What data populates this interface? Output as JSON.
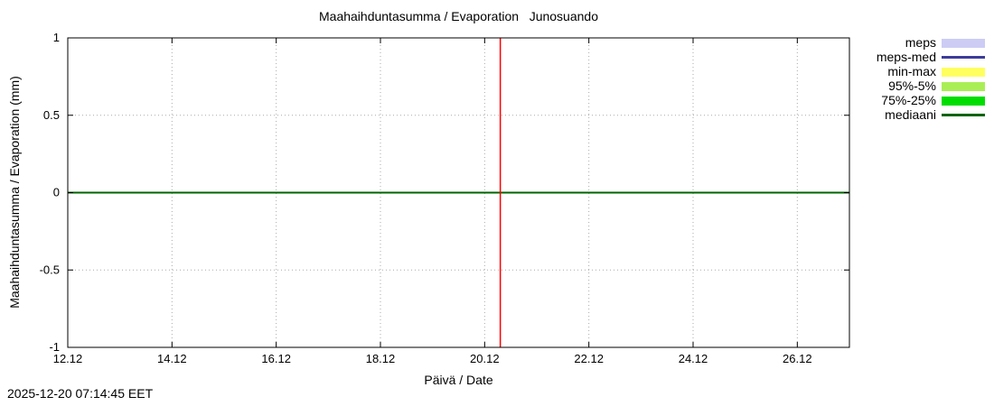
{
  "chart_data": {
    "type": "line",
    "title": "Maahaihduntasumma / Evaporation   Junosuando",
    "xlabel": "Päivä / Date",
    "ylabel": "Maahaihduntasumma / Evaporation (mm)",
    "timestamp": "2025-12-20 07:14:45 EET",
    "xlim": [
      12.0,
      27.0
    ],
    "ylim": [
      -1,
      1
    ],
    "grid": true,
    "grid_color": "#aaaaaa",
    "xticks": [
      {
        "v": 12,
        "label": "12.12"
      },
      {
        "v": 14,
        "label": "14.12"
      },
      {
        "v": 16,
        "label": "16.12"
      },
      {
        "v": 18,
        "label": "18.12"
      },
      {
        "v": 20,
        "label": "20.12"
      },
      {
        "v": 22,
        "label": "22.12"
      },
      {
        "v": 24,
        "label": "24.12"
      },
      {
        "v": 26,
        "label": "26.12"
      }
    ],
    "yticks": [
      {
        "v": -1,
        "label": "-1"
      },
      {
        "v": -0.5,
        "label": "-0.5"
      },
      {
        "v": 0,
        "label": "0"
      },
      {
        "v": 0.5,
        "label": "0.5"
      },
      {
        "v": 1,
        "label": "1"
      }
    ],
    "series": [
      {
        "name": "mediaani",
        "color": "#006400",
        "width": 2,
        "points": [
          [
            12,
            0
          ],
          [
            27,
            0
          ]
        ]
      }
    ],
    "markers": [
      {
        "type": "vline",
        "x": 20.3,
        "color": "#ff0000",
        "width": 1.5,
        "meaning": "current time 2025-12-20 07:14:45"
      }
    ],
    "legend_position": "top-right-outside",
    "legend": [
      {
        "label": "meps",
        "swatch": "bar",
        "color": "#ccccf5"
      },
      {
        "label": "meps-med",
        "swatch": "line",
        "color": "#3c3c9c"
      },
      {
        "label": "min-max",
        "swatch": "bar",
        "color": "#ffff60"
      },
      {
        "label": "95%-5%",
        "swatch": "bar",
        "color": "#aaee55"
      },
      {
        "label": "75%-25%",
        "swatch": "bar",
        "color": "#00dd00"
      },
      {
        "label": "mediaani",
        "swatch": "line",
        "color": "#006400"
      }
    ]
  }
}
